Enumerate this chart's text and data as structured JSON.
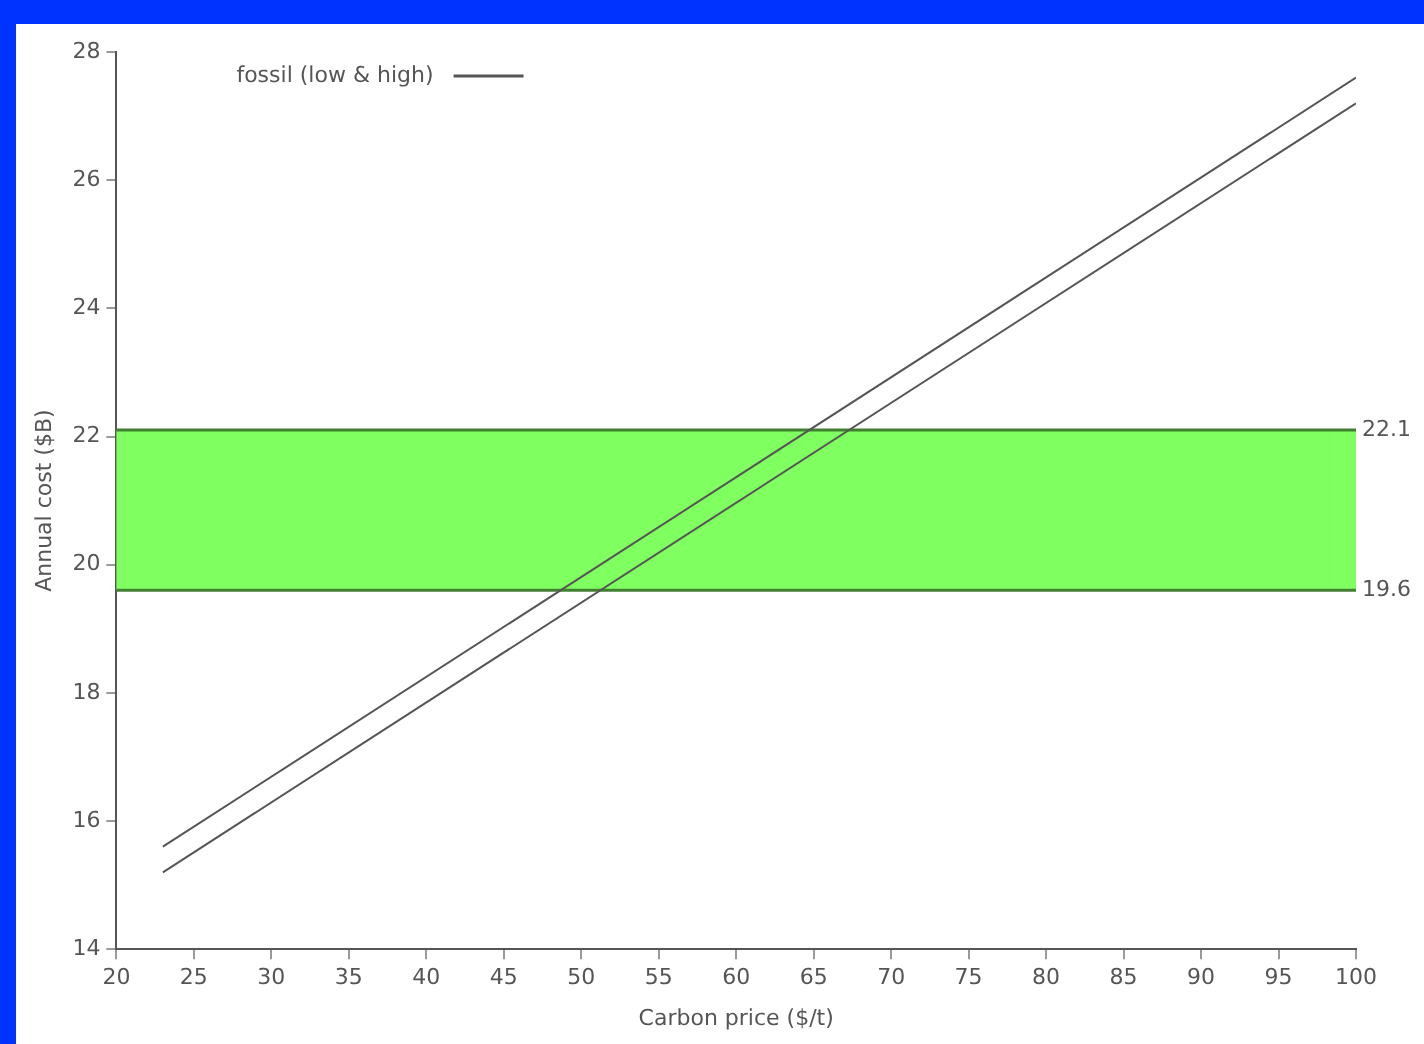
{
  "chart_data": {
    "type": "line",
    "xlabel": "Carbon price ($/t)",
    "ylabel": "Annual cost ($B)",
    "x": [
      23,
      100
    ],
    "series": [
      {
        "name": "fossil (low & high)",
        "color": "#555555",
        "values": [
          15.6,
          27.6
        ]
      },
      {
        "color": "#555555",
        "values": [
          15.2,
          27.2
        ]
      }
    ],
    "xlim": [
      20,
      100
    ],
    "xticks": [
      20,
      25,
      30,
      35,
      40,
      45,
      50,
      55,
      60,
      65,
      70,
      75,
      80,
      85,
      90,
      95,
      100
    ],
    "ylim": [
      14,
      28
    ],
    "yticks": [
      14,
      16,
      18,
      20,
      22,
      24,
      26,
      28
    ],
    "bands": [
      {
        "axis": "y",
        "from": 19.6,
        "to": 22.1,
        "color": "#80ff60"
      }
    ],
    "ref_lines": [
      {
        "axis": "y",
        "value": 22.1,
        "label": "22.1",
        "color": "#408030"
      },
      {
        "axis": "y",
        "value": 19.6,
        "label": "19.6",
        "color": "#408030"
      }
    ],
    "legend": "top left",
    "marker": "none",
    "line_style": "solid",
    "grid": false
  }
}
